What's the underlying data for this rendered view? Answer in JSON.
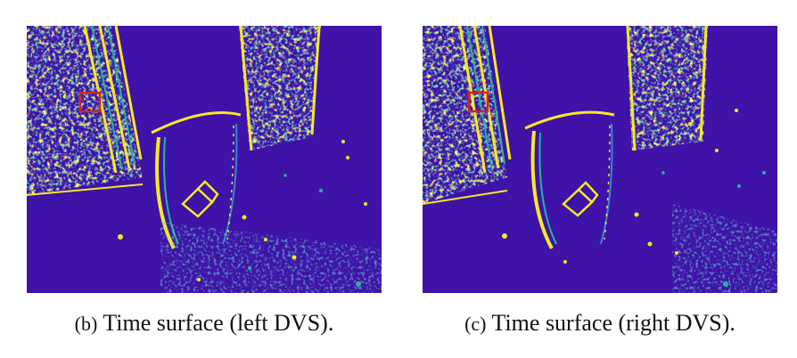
{
  "panels": [
    {
      "id": "b",
      "label": "(b)",
      "caption": "Time surface (left DVS)."
    },
    {
      "id": "c",
      "label": "(c)",
      "caption": "Time surface (right DVS)."
    }
  ],
  "colors": {
    "background": "#3f12a8",
    "event_bright": "#f5e82a",
    "event_mid": "#22b6a0",
    "event_low": "#3c83d6",
    "highlight_box": "#d32323"
  }
}
